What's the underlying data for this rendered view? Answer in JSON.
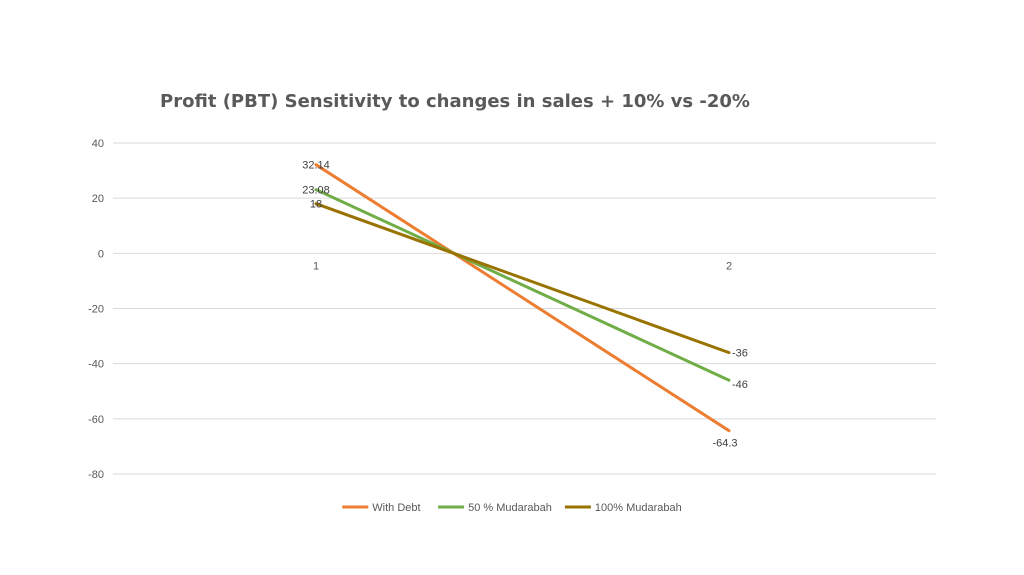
{
  "chart_data": {
    "type": "line",
    "title": "Profit (PBT) Sensitivity to changes in sales   + 10%  vs  -20%",
    "xlabel": "",
    "ylabel": "",
    "categories": [
      "1",
      "2"
    ],
    "ylim": [
      -80,
      40
    ],
    "yticks": [
      40,
      20,
      0,
      -20,
      -40,
      -60,
      -80
    ],
    "grid": true,
    "legend_position": "bottom",
    "series": [
      {
        "name": "With Debt",
        "values": [
          32.14,
          -64.3
        ],
        "labels": [
          "32.14",
          "-64.3"
        ],
        "color": "#ed7d31"
      },
      {
        "name": "50 % Mudarabah",
        "values": [
          23.08,
          -46
        ],
        "labels": [
          "23.08",
          "-46"
        ],
        "color": "#70ad47"
      },
      {
        "name": "100% Mudarabah",
        "values": [
          18,
          -36
        ],
        "labels": [
          "18",
          "-36"
        ],
        "color": "#997300"
      }
    ]
  }
}
